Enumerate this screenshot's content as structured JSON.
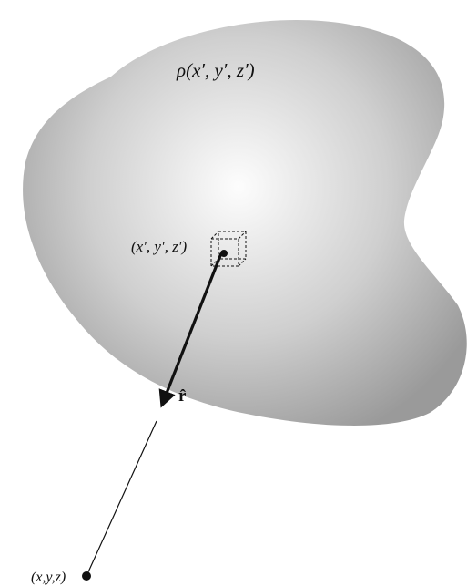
{
  "labels": {
    "density": "ρ(x′, y′, z′)",
    "source_point": "(x′, y′, z′)",
    "unit_vector": "r̂",
    "field_point": "(x,y,z)"
  },
  "icons": {
    "volume_element": "dashed-cube-icon",
    "source_dot": "dot-icon",
    "field_dot": "dot-icon",
    "vector": "arrow-icon"
  },
  "colors": {
    "blob_center": "#fdfdfd",
    "blob_edge": "#9a9a9a",
    "ink": "#111111",
    "background": "#ffffff"
  }
}
